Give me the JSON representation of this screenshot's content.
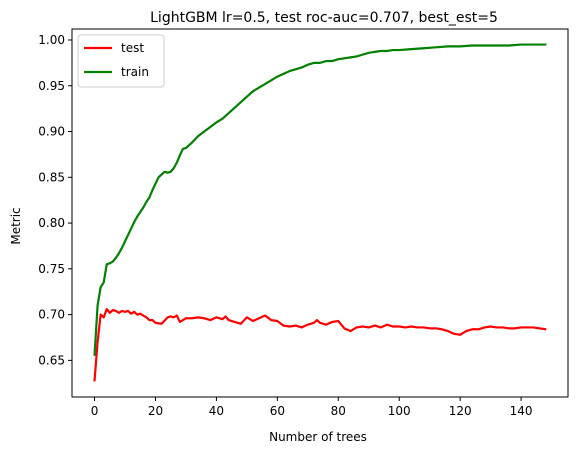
{
  "chart_data": {
    "type": "line",
    "title": "LightGBM lr=0.5, test roc-auc=0.707, best_est=5",
    "xlabel": "Number of trees",
    "ylabel": "Metric",
    "xlim": [
      -7.4,
      155.4
    ],
    "ylim": [
      0.61,
      1.012
    ],
    "xticks": [
      0,
      20,
      40,
      60,
      80,
      100,
      120,
      140
    ],
    "xtick_labels": [
      "0",
      "20",
      "40",
      "60",
      "80",
      "100",
      "120",
      "140"
    ],
    "yticks": [
      0.65,
      0.7,
      0.75,
      0.8,
      0.85,
      0.9,
      0.95,
      1.0
    ],
    "ytick_labels": [
      "0.65",
      "0.70",
      "0.75",
      "0.80",
      "0.85",
      "0.90",
      "0.95",
      "1.00"
    ],
    "grid": false,
    "legend_position": "top-left",
    "series": [
      {
        "name": "test",
        "color": "#ff0000",
        "x": [
          0,
          1,
          2,
          3,
          4,
          5,
          6,
          7,
          8,
          9,
          10,
          11,
          12,
          13,
          14,
          15,
          16,
          17,
          18,
          19,
          20,
          22,
          24,
          25,
          26,
          27,
          28,
          30,
          32,
          34,
          36,
          38,
          40,
          42,
          43,
          44,
          46,
          48,
          50,
          52,
          54,
          56,
          58,
          60,
          62,
          64,
          66,
          68,
          70,
          72,
          73,
          74,
          76,
          78,
          80,
          82,
          84,
          86,
          88,
          90,
          92,
          94,
          96,
          98,
          100,
          102,
          104,
          106,
          108,
          110,
          112,
          114,
          116,
          118,
          120,
          122,
          124,
          126,
          128,
          130,
          132,
          134,
          136,
          138,
          140,
          142,
          144,
          146,
          148
        ],
        "values": [
          0.628,
          0.67,
          0.7,
          0.697,
          0.706,
          0.702,
          0.705,
          0.704,
          0.702,
          0.704,
          0.703,
          0.704,
          0.701,
          0.703,
          0.7,
          0.701,
          0.699,
          0.697,
          0.694,
          0.694,
          0.691,
          0.69,
          0.697,
          0.698,
          0.697,
          0.699,
          0.692,
          0.696,
          0.696,
          0.697,
          0.696,
          0.694,
          0.697,
          0.695,
          0.698,
          0.694,
          0.692,
          0.69,
          0.697,
          0.693,
          0.696,
          0.699,
          0.694,
          0.693,
          0.688,
          0.687,
          0.688,
          0.686,
          0.689,
          0.691,
          0.694,
          0.691,
          0.689,
          0.692,
          0.693,
          0.685,
          0.682,
          0.686,
          0.687,
          0.686,
          0.688,
          0.686,
          0.689,
          0.687,
          0.687,
          0.686,
          0.687,
          0.686,
          0.686,
          0.685,
          0.685,
          0.684,
          0.682,
          0.679,
          0.678,
          0.682,
          0.684,
          0.684,
          0.686,
          0.687,
          0.686,
          0.686,
          0.685,
          0.685,
          0.686,
          0.686,
          0.686,
          0.685,
          0.684
        ]
      },
      {
        "name": "train",
        "color": "#008000",
        "x": [
          0,
          1,
          2,
          3,
          4,
          5,
          6,
          7,
          8,
          9,
          10,
          11,
          12,
          13,
          14,
          15,
          16,
          17,
          18,
          19,
          20,
          21,
          22,
          23,
          24,
          25,
          26,
          27,
          28,
          29,
          30,
          32,
          34,
          36,
          38,
          40,
          42,
          44,
          46,
          48,
          50,
          52,
          54,
          56,
          58,
          60,
          62,
          64,
          66,
          68,
          70,
          72,
          74,
          76,
          78,
          80,
          82,
          84,
          86,
          88,
          90,
          92,
          94,
          96,
          98,
          100,
          104,
          108,
          112,
          116,
          120,
          124,
          128,
          132,
          136,
          140,
          144,
          148
        ],
        "values": [
          0.656,
          0.71,
          0.73,
          0.735,
          0.755,
          0.756,
          0.758,
          0.762,
          0.767,
          0.773,
          0.78,
          0.787,
          0.794,
          0.801,
          0.807,
          0.812,
          0.817,
          0.823,
          0.828,
          0.836,
          0.843,
          0.85,
          0.853,
          0.856,
          0.855,
          0.856,
          0.86,
          0.866,
          0.874,
          0.881,
          0.882,
          0.888,
          0.895,
          0.9,
          0.905,
          0.91,
          0.914,
          0.92,
          0.926,
          0.932,
          0.938,
          0.944,
          0.948,
          0.952,
          0.956,
          0.96,
          0.963,
          0.966,
          0.968,
          0.97,
          0.973,
          0.975,
          0.975,
          0.977,
          0.977,
          0.979,
          0.98,
          0.981,
          0.982,
          0.984,
          0.986,
          0.987,
          0.988,
          0.988,
          0.989,
          0.989,
          0.99,
          0.991,
          0.992,
          0.993,
          0.993,
          0.994,
          0.994,
          0.994,
          0.994,
          0.995,
          0.995,
          0.995
        ]
      }
    ]
  }
}
